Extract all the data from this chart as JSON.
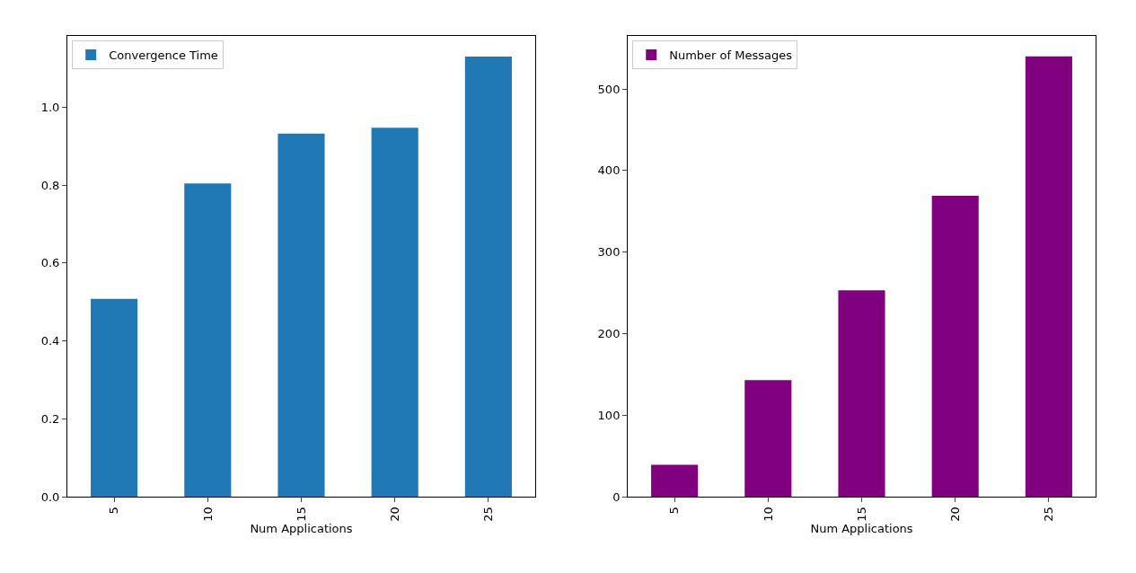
{
  "chart_data": [
    {
      "type": "bar",
      "categories": [
        "5",
        "10",
        "15",
        "20",
        "25"
      ],
      "xlabel": "Num Applications",
      "legend": "top left",
      "grid": false,
      "series": [
        {
          "name": "Convergence Time",
          "color": "#1f77b4",
          "values": [
            0.508,
            0.804,
            0.932,
            0.947,
            1.13
          ]
        }
      ],
      "ylim": [
        0,
        1.183
      ],
      "yticks": [
        {
          "value": 0,
          "label": "0.0"
        },
        {
          "value": 0.2,
          "label": "0.2"
        },
        {
          "value": 0.4,
          "label": "0.4"
        },
        {
          "value": 0.6,
          "label": "0.6"
        },
        {
          "value": 0.8,
          "label": "0.8"
        },
        {
          "value": 1.0,
          "label": "1.0"
        }
      ]
    },
    {
      "type": "bar",
      "categories": [
        "5",
        "10",
        "15",
        "20",
        "25"
      ],
      "xlabel": "Num Applications",
      "legend": "top left",
      "grid": false,
      "series": [
        {
          "name": "Number of Messages",
          "color": "#800080",
          "values": [
            39,
            143,
            253,
            369,
            540
          ]
        }
      ],
      "ylim": [
        0,
        565
      ],
      "yticks": [
        0,
        100,
        200,
        300,
        400,
        500
      ]
    }
  ]
}
